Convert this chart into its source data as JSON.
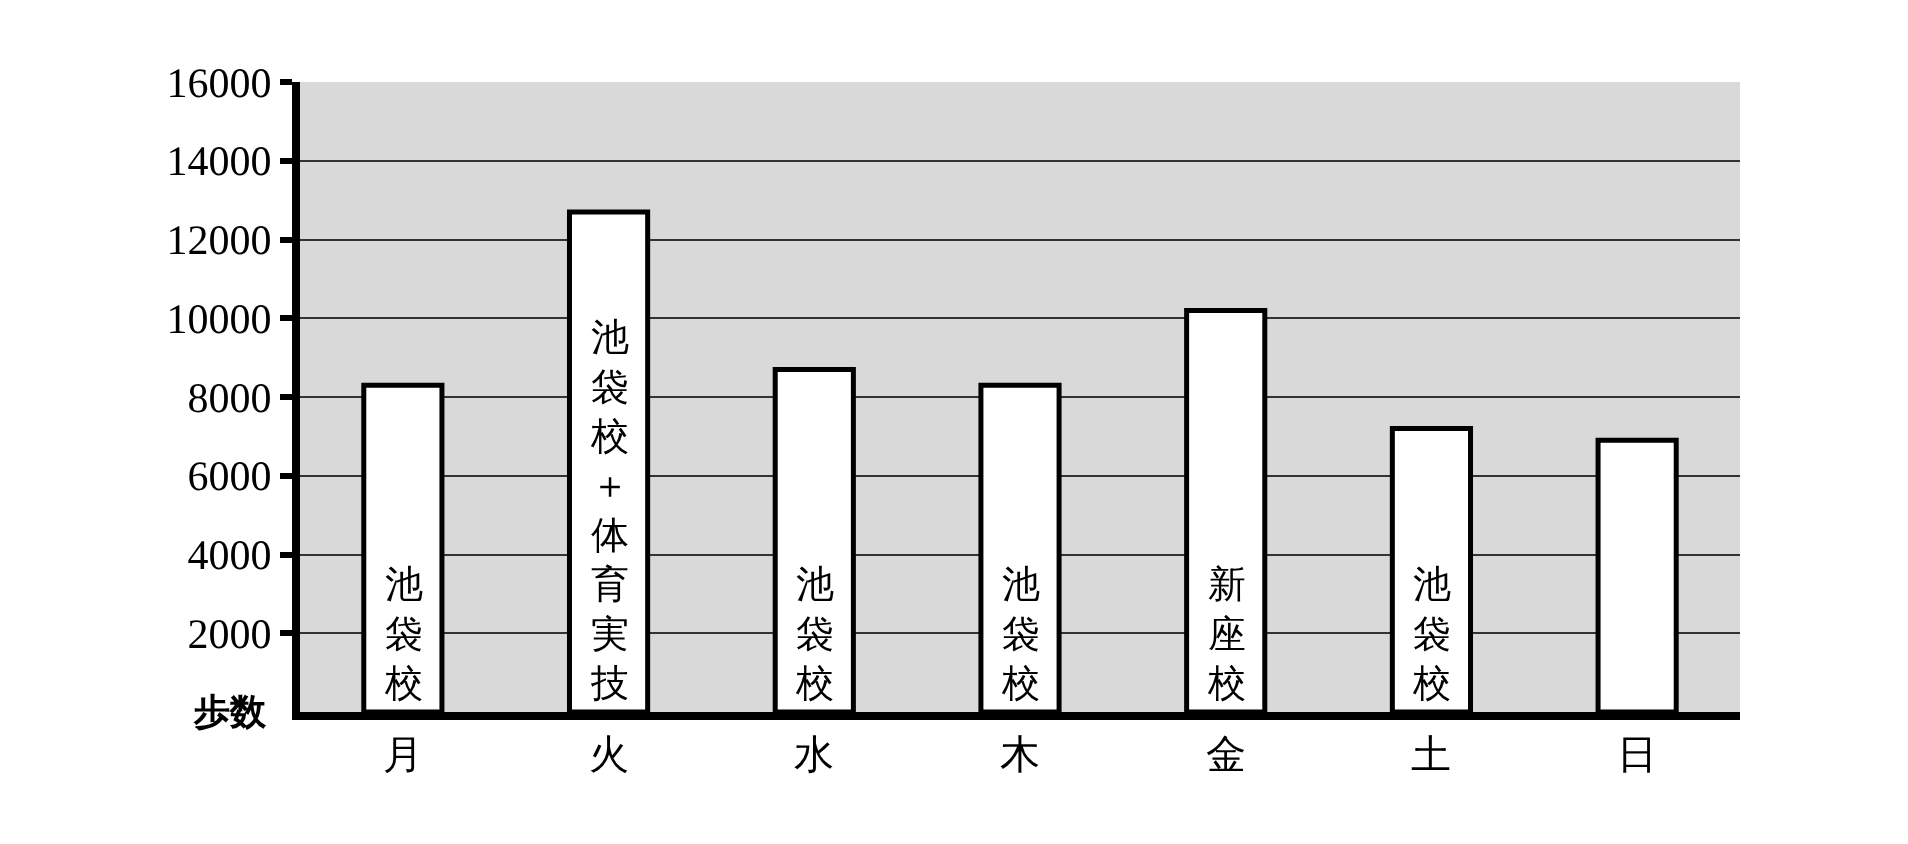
{
  "chart_data": {
    "type": "bar",
    "ylabel": "歩数",
    "categories": [
      "月",
      "火",
      "水",
      "木",
      "金",
      "土",
      "日"
    ],
    "values": [
      8300,
      12700,
      8700,
      8300,
      10200,
      7200,
      6900
    ],
    "color": "#ffffff",
    "ylim": [
      0,
      16000
    ],
    "yticks": [
      2000,
      4000,
      6000,
      8000,
      10000,
      12000,
      14000,
      16000
    ],
    "grid": "y",
    "value_labels": [
      "池袋校",
      "池袋校＋体育実技",
      "池袋校",
      "池袋校",
      "新座校",
      "池袋校",
      null
    ]
  }
}
